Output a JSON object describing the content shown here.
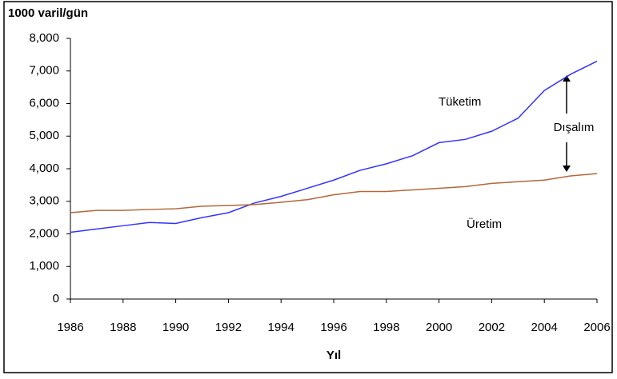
{
  "chart_data": {
    "type": "line",
    "y_axis_label": "1000 varil/gün",
    "x_axis_label": "Yıl",
    "x": [
      1986,
      1987,
      1988,
      1989,
      1990,
      1991,
      1992,
      1993,
      1994,
      1995,
      1996,
      1997,
      1998,
      1999,
      2000,
      2001,
      2002,
      2003,
      2004,
      2005,
      2006
    ],
    "series": [
      {
        "name": "Tüketim",
        "color": "#3333ff",
        "values": [
          2050,
          2150,
          2250,
          2350,
          2320,
          2500,
          2650,
          2950,
          3150,
          3400,
          3650,
          3950,
          4150,
          4400,
          4800,
          4900,
          5150,
          5550,
          6400,
          6900,
          7300
        ]
      },
      {
        "name": "Üretim",
        "color": "#b5673a",
        "values": [
          2650,
          2720,
          2720,
          2750,
          2770,
          2850,
          2870,
          2900,
          2970,
          3050,
          3200,
          3300,
          3300,
          3350,
          3400,
          3450,
          3550,
          3600,
          3650,
          3780,
          3850
        ]
      }
    ],
    "annotations": [
      "Dışalım"
    ],
    "xlim": [
      1986,
      2006
    ],
    "xticks": [
      1986,
      1988,
      1990,
      1992,
      1994,
      1996,
      1998,
      2000,
      2002,
      2004,
      2006
    ],
    "ylim": [
      0,
      8000
    ],
    "yticks": [
      0,
      {
        "value": 1000,
        "label": "1,000"
      },
      {
        "value": 2000,
        "label": "2,000"
      },
      {
        "value": 3000,
        "label": "3,000"
      },
      {
        "value": 4000,
        "label": "4,000"
      },
      {
        "value": 5000,
        "label": "5,000"
      },
      {
        "value": 6000,
        "label": "6,000"
      },
      {
        "value": 7000,
        "label": "7,000"
      },
      {
        "value": 8000,
        "label": "8,000"
      }
    ],
    "grid": false
  }
}
